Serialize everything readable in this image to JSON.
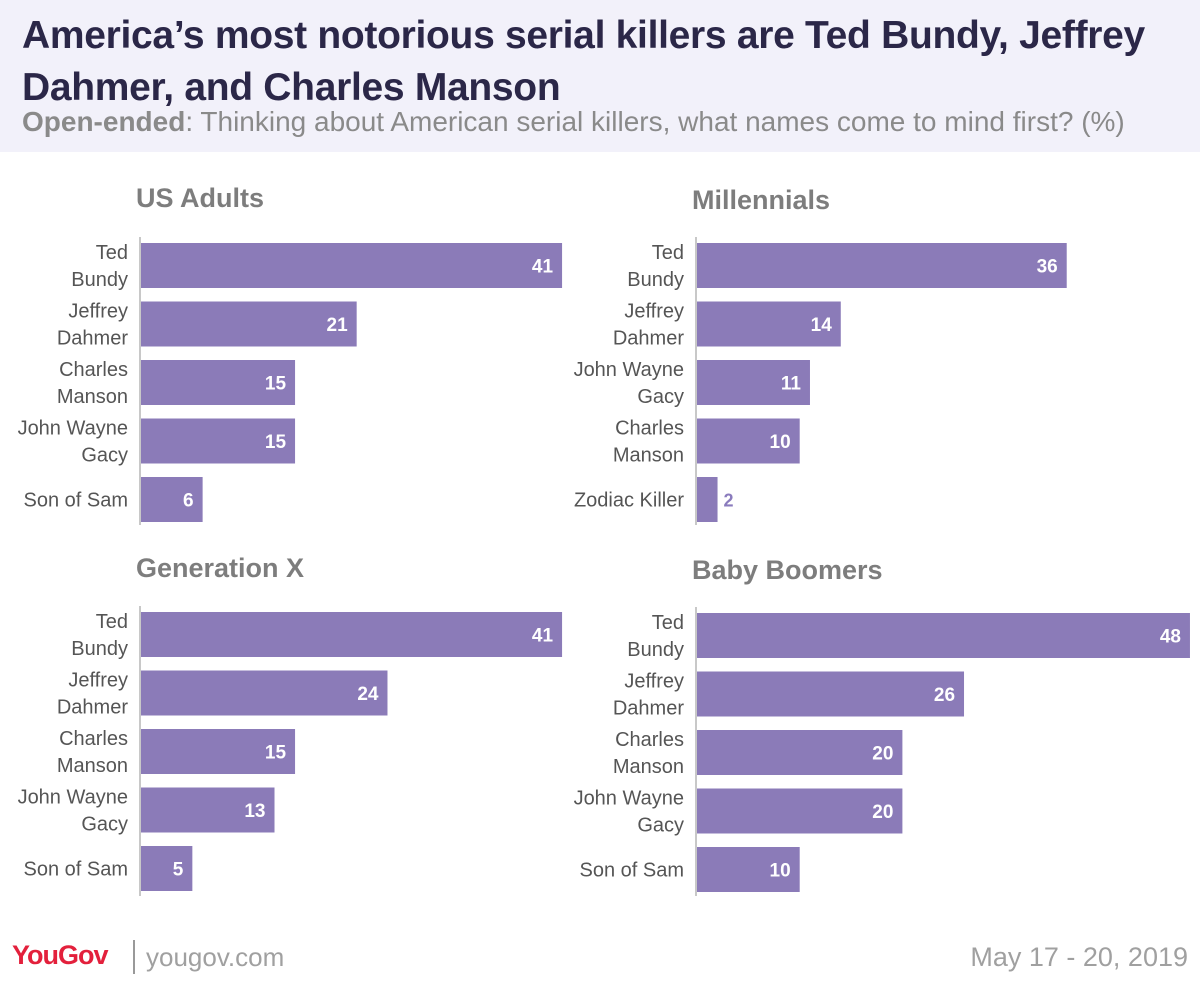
{
  "header": {
    "title": "America’s most notorious serial killers are Ted Bundy, Jeffrey Dahmer, and Charles Manson",
    "subtitle_lead": "Open-ended",
    "subtitle_rest": ": Thinking about American serial killers, what names come to mind first? (%)"
  },
  "colors": {
    "bar": "#8b7bb8",
    "header_bg": "#f2f1fa",
    "title": "#2b2748",
    "brand": "#e3203c"
  },
  "chart_data": [
    {
      "type": "bar",
      "orientation": "horizontal",
      "title": "US Adults",
      "categories": [
        [
          "Ted",
          "Bundy"
        ],
        [
          "Jeffrey",
          "Dahmer"
        ],
        [
          "Charles",
          "Manson"
        ],
        [
          "John Wayne",
          "Gacy"
        ],
        [
          "Son of Sam"
        ]
      ],
      "values": [
        41,
        21,
        15,
        15,
        6
      ]
    },
    {
      "type": "bar",
      "orientation": "horizontal",
      "title": "Millennials",
      "categories": [
        [
          "Ted",
          "Bundy"
        ],
        [
          "Jeffrey",
          "Dahmer"
        ],
        [
          "John Wayne",
          "Gacy"
        ],
        [
          "Charles",
          "Manson"
        ],
        [
          "Zodiac Killer"
        ]
      ],
      "values": [
        36,
        14,
        11,
        10,
        2
      ]
    },
    {
      "type": "bar",
      "orientation": "horizontal",
      "title": "Generation X",
      "categories": [
        [
          "Ted",
          "Bundy"
        ],
        [
          "Jeffrey",
          "Dahmer"
        ],
        [
          "Charles",
          "Manson"
        ],
        [
          "John Wayne",
          "Gacy"
        ],
        [
          "Son of Sam"
        ]
      ],
      "values": [
        41,
        24,
        15,
        13,
        5
      ]
    },
    {
      "type": "bar",
      "orientation": "horizontal",
      "title": "Baby Boomers",
      "categories": [
        [
          "Ted",
          "Bundy"
        ],
        [
          "Jeffrey",
          "Dahmer"
        ],
        [
          "Charles",
          "Manson"
        ],
        [
          "John Wayne",
          "Gacy"
        ],
        [
          "Son of Sam"
        ]
      ],
      "values": [
        48,
        26,
        20,
        20,
        10
      ]
    }
  ],
  "footer": {
    "logo": "YouGov",
    "site": "yougov.com",
    "date": "May 17 - 20, 2019"
  }
}
